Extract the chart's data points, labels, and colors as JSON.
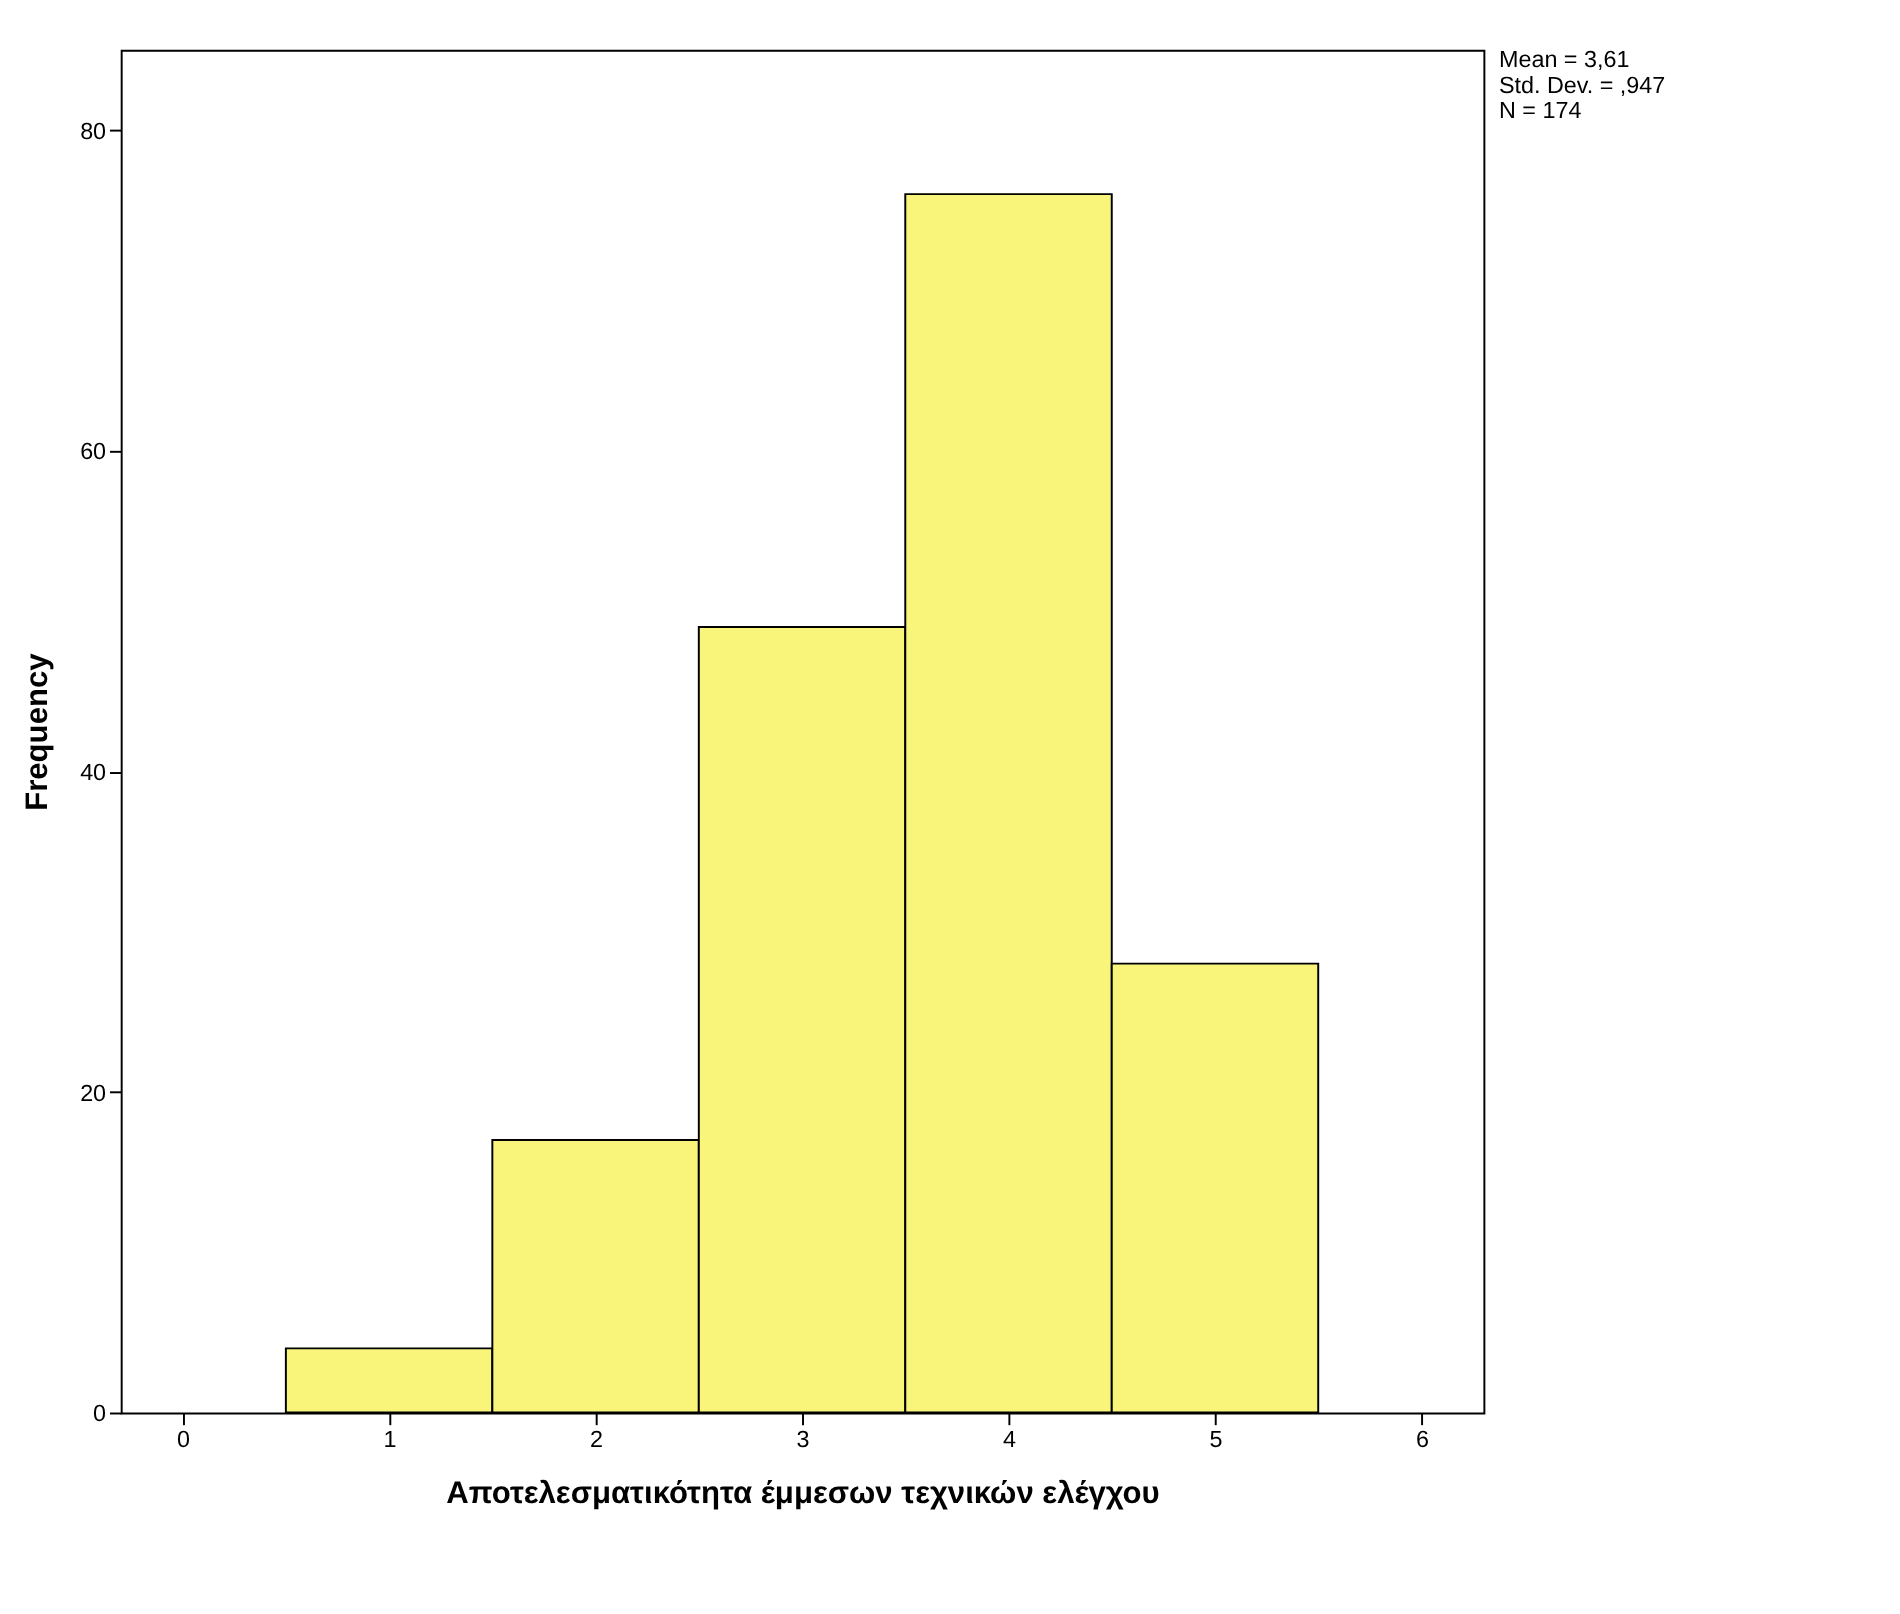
{
  "chart_data": {
    "type": "histogram",
    "xlabel": "Αποτελεσματικότητα έμμεσων τεχνικών ελέγχου",
    "ylabel": "Frequency",
    "bins": [
      0.5,
      1.5,
      2.5,
      3.5,
      4.5,
      5.5
    ],
    "values": [
      4,
      17,
      49,
      76,
      28
    ],
    "color": "#f8f57a",
    "xlim": [
      -0.3,
      6.3
    ],
    "xticks": [
      0,
      1,
      2,
      3,
      4,
      5,
      6
    ],
    "ylim": [
      0,
      85
    ],
    "yticks": [
      0,
      20,
      40,
      60,
      80
    ],
    "grid": false,
    "annotations": [
      "Mean = 3,61",
      "Std. Dev. = ,947",
      "N = 174"
    ]
  }
}
